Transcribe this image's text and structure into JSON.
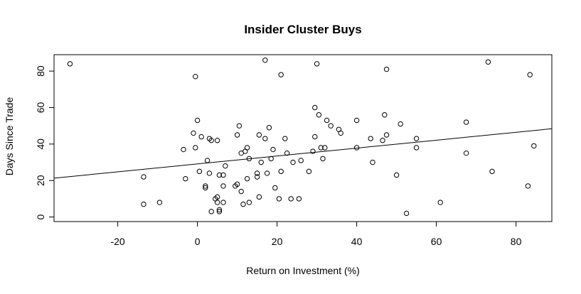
{
  "chart_data": {
    "type": "scatter",
    "title": "Insider Cluster Buys",
    "xlabel": "Return on Investment (%)",
    "ylabel": "Days Since Trade",
    "xlim": [
      -36,
      89
    ],
    "ylim": [
      -2.5,
      89
    ],
    "xticks": [
      -20,
      0,
      20,
      40,
      60,
      80
    ],
    "yticks": [
      0,
      20,
      40,
      60,
      80
    ],
    "grid": false,
    "box": true,
    "points": [
      {
        "x": -32,
        "y": 84
      },
      {
        "x": -13.5,
        "y": 22
      },
      {
        "x": -13.5,
        "y": 7
      },
      {
        "x": -9.5,
        "y": 8
      },
      {
        "x": -3.5,
        "y": 37
      },
      {
        "x": -3,
        "y": 21
      },
      {
        "x": -1,
        "y": 46
      },
      {
        "x": -0.5,
        "y": 77
      },
      {
        "x": -0.5,
        "y": 38
      },
      {
        "x": 0,
        "y": 53
      },
      {
        "x": 0.5,
        "y": 25
      },
      {
        "x": 1,
        "y": 44
      },
      {
        "x": 2,
        "y": 17
      },
      {
        "x": 2,
        "y": 16
      },
      {
        "x": 2.5,
        "y": 31
      },
      {
        "x": 3,
        "y": 24
      },
      {
        "x": 3,
        "y": 43
      },
      {
        "x": 3.5,
        "y": 42
      },
      {
        "x": 3.5,
        "y": 3
      },
      {
        "x": 4.5,
        "y": 10
      },
      {
        "x": 5,
        "y": 42
      },
      {
        "x": 5,
        "y": 11
      },
      {
        "x": 5,
        "y": 8
      },
      {
        "x": 5.5,
        "y": 23
      },
      {
        "x": 5.5,
        "y": 3
      },
      {
        "x": 5.5,
        "y": 4
      },
      {
        "x": 6.5,
        "y": 23
      },
      {
        "x": 6.5,
        "y": 17
      },
      {
        "x": 6.5,
        "y": 8
      },
      {
        "x": 7,
        "y": 28
      },
      {
        "x": 9.5,
        "y": 17
      },
      {
        "x": 10,
        "y": 45
      },
      {
        "x": 10,
        "y": 18
      },
      {
        "x": 10.5,
        "y": 50
      },
      {
        "x": 11,
        "y": 35
      },
      {
        "x": 11,
        "y": 14
      },
      {
        "x": 11.5,
        "y": 7
      },
      {
        "x": 12,
        "y": 36
      },
      {
        "x": 12.5,
        "y": 38
      },
      {
        "x": 12.5,
        "y": 21
      },
      {
        "x": 13,
        "y": 32
      },
      {
        "x": 13,
        "y": 8
      },
      {
        "x": 15,
        "y": 22
      },
      {
        "x": 15,
        "y": 24
      },
      {
        "x": 15.5,
        "y": 45
      },
      {
        "x": 15.5,
        "y": 11
      },
      {
        "x": 16,
        "y": 30
      },
      {
        "x": 17,
        "y": 43
      },
      {
        "x": 17,
        "y": 86
      },
      {
        "x": 17.5,
        "y": 24
      },
      {
        "x": 18,
        "y": 49
      },
      {
        "x": 18.5,
        "y": 32
      },
      {
        "x": 19,
        "y": 37
      },
      {
        "x": 19.5,
        "y": 16
      },
      {
        "x": 20.5,
        "y": 10
      },
      {
        "x": 21,
        "y": 78
      },
      {
        "x": 21,
        "y": 25
      },
      {
        "x": 22,
        "y": 43
      },
      {
        "x": 22.5,
        "y": 35
      },
      {
        "x": 23.5,
        "y": 10
      },
      {
        "x": 24,
        "y": 30
      },
      {
        "x": 25.5,
        "y": 10
      },
      {
        "x": 26,
        "y": 31
      },
      {
        "x": 28,
        "y": 25
      },
      {
        "x": 29,
        "y": 36
      },
      {
        "x": 29.5,
        "y": 60
      },
      {
        "x": 29.5,
        "y": 44
      },
      {
        "x": 30,
        "y": 84
      },
      {
        "x": 30.5,
        "y": 56
      },
      {
        "x": 31,
        "y": 38
      },
      {
        "x": 31.5,
        "y": 32
      },
      {
        "x": 32,
        "y": 38
      },
      {
        "x": 32.5,
        "y": 53
      },
      {
        "x": 33.5,
        "y": 50
      },
      {
        "x": 35.5,
        "y": 48
      },
      {
        "x": 36,
        "y": 46
      },
      {
        "x": 40,
        "y": 53
      },
      {
        "x": 40,
        "y": 38
      },
      {
        "x": 43.5,
        "y": 43
      },
      {
        "x": 44,
        "y": 30
      },
      {
        "x": 46.5,
        "y": 42
      },
      {
        "x": 47,
        "y": 56
      },
      {
        "x": 47.5,
        "y": 81
      },
      {
        "x": 47.5,
        "y": 45
      },
      {
        "x": 50,
        "y": 23
      },
      {
        "x": 51,
        "y": 51
      },
      {
        "x": 52.5,
        "y": 2
      },
      {
        "x": 55,
        "y": 43
      },
      {
        "x": 55,
        "y": 38
      },
      {
        "x": 61,
        "y": 8
      },
      {
        "x": 67.5,
        "y": 52
      },
      {
        "x": 67.5,
        "y": 35
      },
      {
        "x": 73,
        "y": 85
      },
      {
        "x": 74,
        "y": 25
      },
      {
        "x": 83,
        "y": 17
      },
      {
        "x": 83.5,
        "y": 78
      },
      {
        "x": 84.5,
        "y": 39
      }
    ],
    "regression_line": {
      "x": [
        -36,
        89
      ],
      "y": [
        21.3,
        48.4
      ]
    }
  }
}
